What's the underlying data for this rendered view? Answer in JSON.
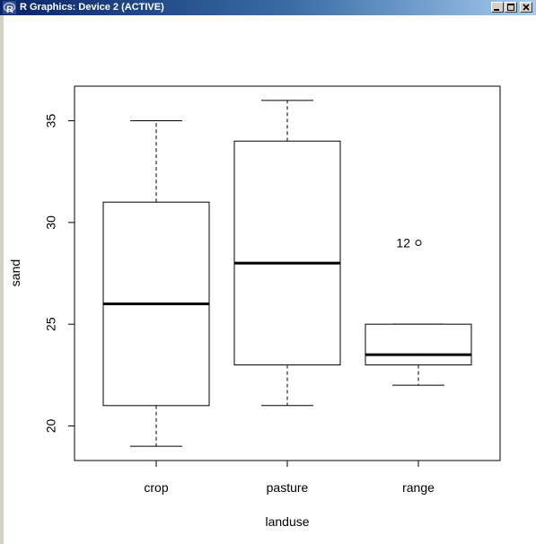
{
  "window": {
    "title": "R Graphics: Device 2 (ACTIVE)",
    "icon": "r-logo-icon",
    "controls": [
      "minimize-icon",
      "maximize-icon",
      "close-icon"
    ]
  },
  "chart_data": {
    "type": "boxplot",
    "title": "",
    "xlabel": "landuse",
    "ylabel": "sand",
    "categories": [
      "crop",
      "pasture",
      "range"
    ],
    "boxes": [
      {
        "category": "crop",
        "whisker_low": 19,
        "q1": 21,
        "median": 26,
        "q3": 31,
        "whisker_high": 35,
        "outliers": []
      },
      {
        "category": "pasture",
        "whisker_low": 21,
        "q1": 23,
        "median": 28,
        "q3": 34,
        "whisker_high": 36,
        "outliers": []
      },
      {
        "category": "range",
        "whisker_low": 22,
        "q1": 23,
        "median": 23.5,
        "q3": 25,
        "whisker_high": 25,
        "outliers": [
          {
            "value": 29,
            "label": "12"
          }
        ]
      }
    ],
    "yticks": [
      20,
      25,
      30,
      35
    ],
    "ylim": [
      18.3,
      36.7
    ],
    "grid": false,
    "legend": "none",
    "colors": {
      "line": "#000000",
      "background": "#ffffff"
    }
  }
}
